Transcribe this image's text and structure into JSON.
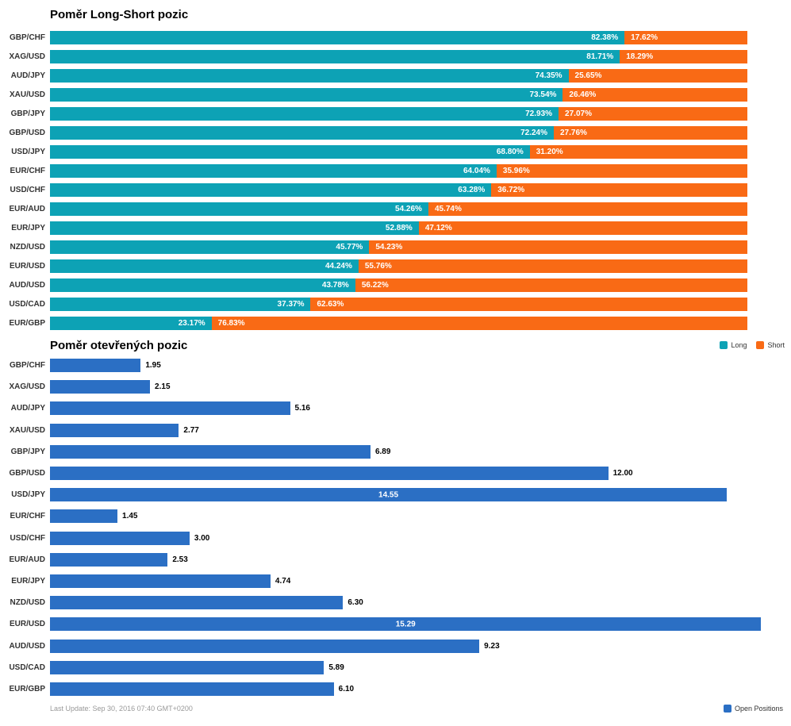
{
  "chart_data": [
    {
      "type": "bar",
      "stacked": true,
      "orientation": "horizontal",
      "title": "Poměr Long-Short pozic",
      "xlabel": "",
      "ylabel": "",
      "xlim": [
        0,
        100
      ],
      "value_suffix": "%",
      "grid": false,
      "legend_position": "bottom-right",
      "categories": [
        "GBP/CHF",
        "XAG/USD",
        "AUD/JPY",
        "XAU/USD",
        "GBP/JPY",
        "GBP/USD",
        "USD/JPY",
        "EUR/CHF",
        "USD/CHF",
        "EUR/AUD",
        "EUR/JPY",
        "NZD/USD",
        "EUR/USD",
        "AUD/USD",
        "USD/CAD",
        "EUR/GBP"
      ],
      "series": [
        {
          "name": "Long",
          "color": "#0DA2B5",
          "values": [
            82.38,
            81.71,
            74.35,
            73.54,
            72.93,
            72.24,
            68.8,
            64.04,
            63.28,
            54.26,
            52.88,
            45.77,
            44.24,
            43.78,
            37.37,
            23.17
          ]
        },
        {
          "name": "Short",
          "color": "#F96A15",
          "values": [
            17.62,
            18.29,
            25.65,
            26.46,
            27.07,
            27.76,
            31.2,
            35.96,
            36.72,
            45.74,
            47.12,
            54.23,
            55.76,
            56.22,
            62.63,
            76.83
          ]
        }
      ]
    },
    {
      "type": "bar",
      "stacked": false,
      "orientation": "horizontal",
      "title": "Poměr otevřených pozic",
      "xlabel": "",
      "ylabel": "",
      "xlim": [
        0,
        15.35
      ],
      "value_suffix": "",
      "grid": false,
      "legend_position": "bottom-right",
      "categories": [
        "GBP/CHF",
        "XAG/USD",
        "AUD/JPY",
        "XAU/USD",
        "GBP/JPY",
        "GBP/USD",
        "USD/JPY",
        "EUR/CHF",
        "USD/CHF",
        "EUR/AUD",
        "EUR/JPY",
        "NZD/USD",
        "EUR/USD",
        "AUD/USD",
        "USD/CAD",
        "EUR/GBP"
      ],
      "series": [
        {
          "name": "Open Positions",
          "color": "#2B6FC4",
          "values": [
            1.95,
            2.15,
            5.16,
            2.77,
            6.89,
            12.0,
            14.55,
            1.45,
            3.0,
            2.53,
            4.74,
            6.3,
            15.29,
            9.23,
            5.89,
            6.1
          ]
        }
      ]
    }
  ],
  "footer": {
    "last_update": "Last Update: Sep 30, 2016 07:40 GMT+0200"
  }
}
